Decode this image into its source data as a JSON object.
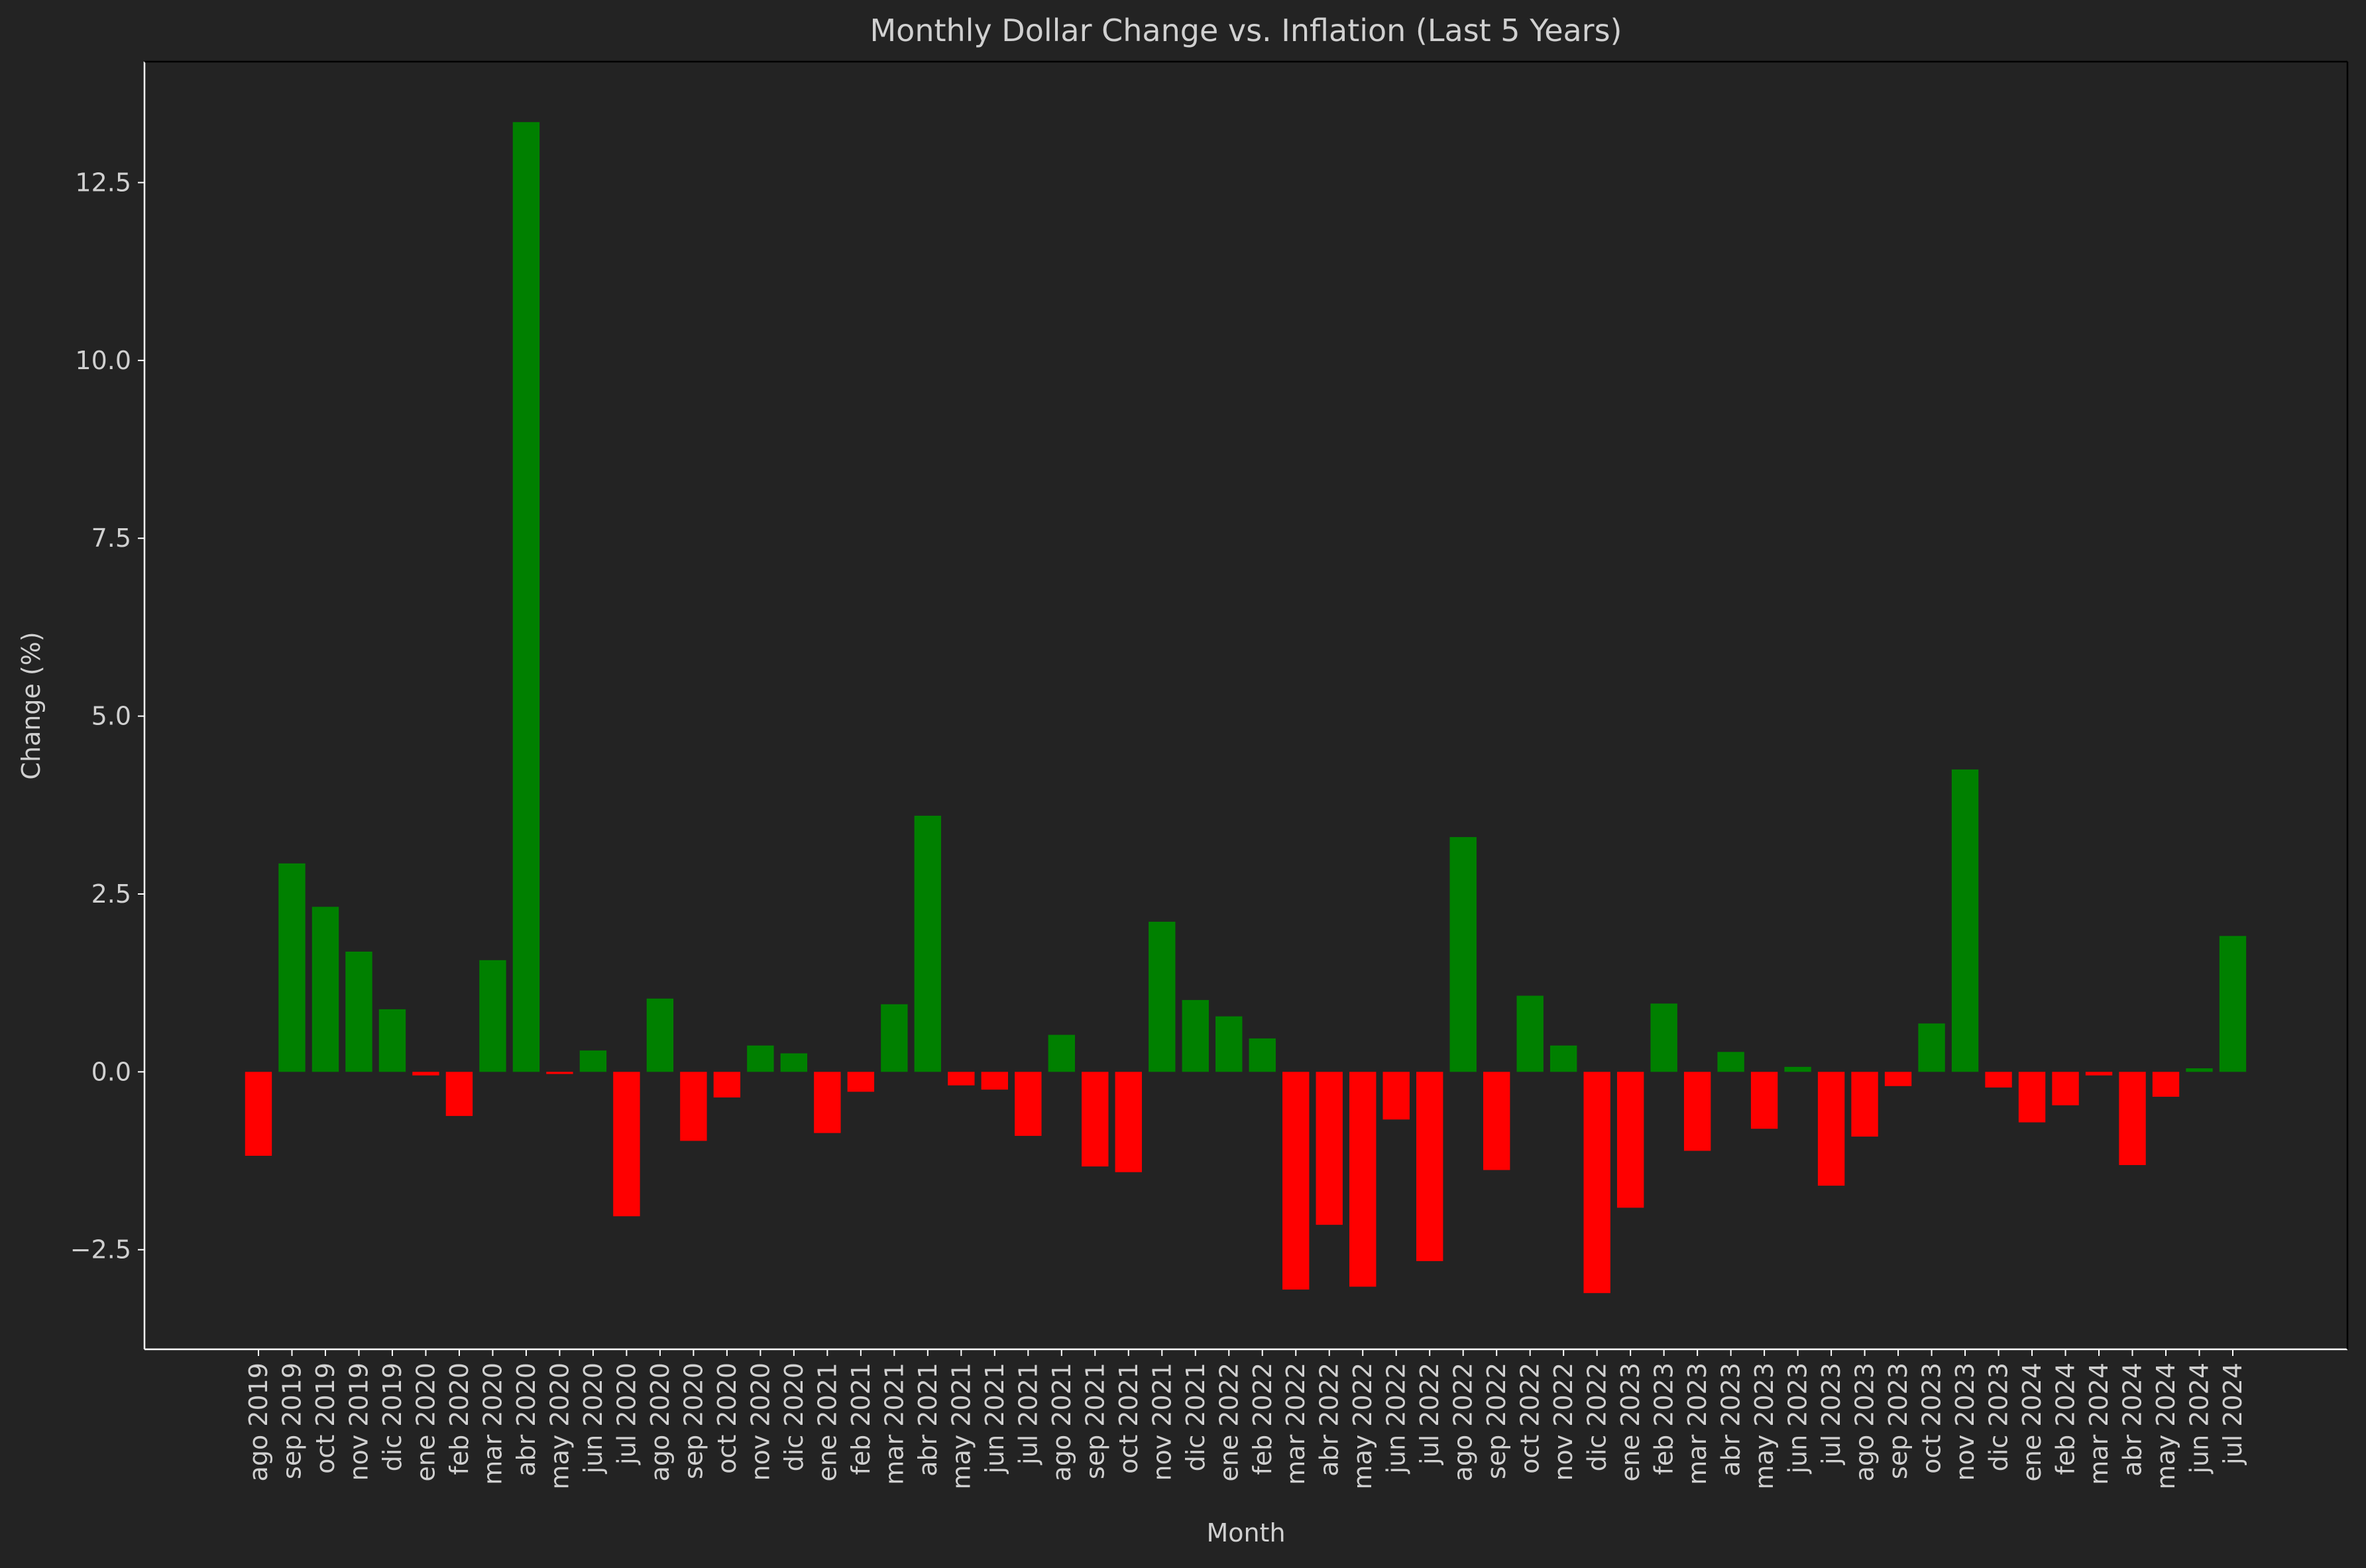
{
  "chart_data": {
    "type": "bar",
    "title": "Monthly Dollar Change vs. Inflation (Last 5 Years)",
    "xlabel": "Month",
    "ylabel": "Change (%)",
    "ylim": [
      -3.9,
      14.2
    ],
    "yticks": [
      -2.5,
      0.0,
      2.5,
      5.0,
      7.5,
      10.0,
      12.5
    ],
    "ytick_labels": [
      "−2.5",
      "0.0",
      "2.5",
      "5.0",
      "7.5",
      "10.0",
      "12.5"
    ],
    "grid": false,
    "legend": "none",
    "colors": {
      "positive": "#008000",
      "negative": "#ff0000",
      "background": "#232323",
      "text": "#d0d0d0",
      "axis": "#ffffff"
    },
    "categories": [
      "ago 2019",
      "sep 2019",
      "oct 2019",
      "nov 2019",
      "dic 2019",
      "ene 2020",
      "feb 2020",
      "mar 2020",
      "abr 2020",
      "may 2020",
      "jun 2020",
      "jul 2020",
      "ago 2020",
      "sep 2020",
      "oct 2020",
      "nov 2020",
      "dic 2020",
      "ene 2021",
      "feb 2021",
      "mar 2021",
      "abr 2021",
      "may 2021",
      "jun 2021",
      "jul 2021",
      "ago 2021",
      "sep 2021",
      "oct 2021",
      "nov 2021",
      "dic 2021",
      "ene 2022",
      "feb 2022",
      "mar 2022",
      "abr 2022",
      "may 2022",
      "jun 2022",
      "jul 2022",
      "ago 2022",
      "sep 2022",
      "oct 2022",
      "nov 2022",
      "dic 2022",
      "ene 2023",
      "feb 2023",
      "mar 2023",
      "abr 2023",
      "may 2023",
      "jun 2023",
      "jul 2023",
      "ago 2023",
      "sep 2023",
      "oct 2023",
      "nov 2023",
      "dic 2023",
      "ene 2024",
      "feb 2024",
      "mar 2024",
      "abr 2024",
      "may 2024",
      "jun 2024",
      "jul 2024"
    ],
    "values": [
      -1.18,
      2.93,
      2.32,
      1.69,
      0.88,
      -0.05,
      -0.62,
      1.57,
      13.35,
      -0.03,
      0.3,
      -2.03,
      1.03,
      -0.97,
      -0.36,
      0.37,
      0.26,
      -0.86,
      -0.28,
      0.95,
      3.6,
      -0.19,
      -0.25,
      -0.9,
      0.52,
      -1.33,
      -1.41,
      2.11,
      1.01,
      0.78,
      0.47,
      -3.06,
      -2.15,
      -3.02,
      -0.67,
      -2.66,
      3.3,
      -1.38,
      1.07,
      0.37,
      -3.11,
      -1.91,
      0.96,
      -1.11,
      0.28,
      -0.8,
      0.07,
      -1.6,
      -0.91,
      -0.2,
      0.68,
      4.25,
      -0.22,
      -0.71,
      -0.47,
      -0.05,
      -1.31,
      -0.35,
      0.05,
      1.91
    ]
  }
}
